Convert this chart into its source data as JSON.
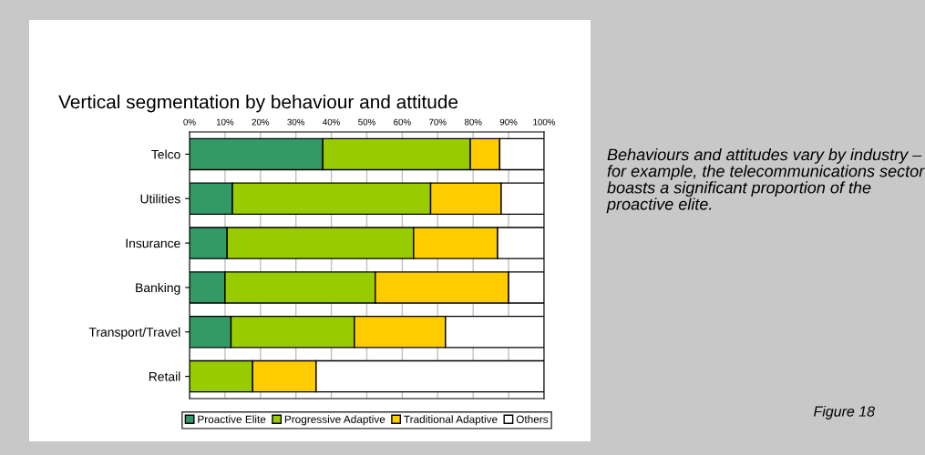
{
  "chart_data": {
    "type": "bar",
    "orientation": "horizontal",
    "stacked": true,
    "title": "Vertical segmentation by behaviour and attitude",
    "categories": [
      "Telco",
      "Utilities",
      "Insurance",
      "Banking",
      "Transport/Travel",
      "Retail"
    ],
    "series": [
      {
        "name": "Proactive Elite",
        "color": "#339966",
        "values": [
          37.6,
          12.1,
          10.6,
          10.0,
          11.7,
          0
        ]
      },
      {
        "name": "Progressive Adaptive",
        "color": "#99cc00",
        "values": [
          41.6,
          55.9,
          52.6,
          42.4,
          34.8,
          17.8
        ]
      },
      {
        "name": "Traditional Adaptive",
        "color": "#ffcc00",
        "values": [
          8.3,
          19.9,
          23.7,
          37.6,
          25.7,
          17.9
        ]
      },
      {
        "name": "Others",
        "color": "#ffffff",
        "values": [
          12.5,
          12.1,
          13.1,
          10.0,
          27.8,
          64.3
        ]
      }
    ],
    "xlim": [
      0,
      100
    ],
    "xticks": [
      {
        "value": 0,
        "label": "0%"
      },
      {
        "value": 10,
        "label": "10%"
      },
      {
        "value": 20,
        "label": "20%"
      },
      {
        "value": 30,
        "label": "30%"
      },
      {
        "value": 40,
        "label": "40%"
      },
      {
        "value": 50,
        "label": "50%"
      },
      {
        "value": 60,
        "label": "60%"
      },
      {
        "value": 70,
        "label": "70%"
      },
      {
        "value": 80,
        "label": "80%"
      },
      {
        "value": 90,
        "label": "90%"
      },
      {
        "value": 100,
        "label": "100%"
      }
    ],
    "grid": "x",
    "legend": "bottom",
    "annotations": [
      "Behaviours and attitudes vary by industry – for example, the telecommunications sector boasts a significant proportion of the proactive elite.",
      "Figure 18"
    ]
  }
}
